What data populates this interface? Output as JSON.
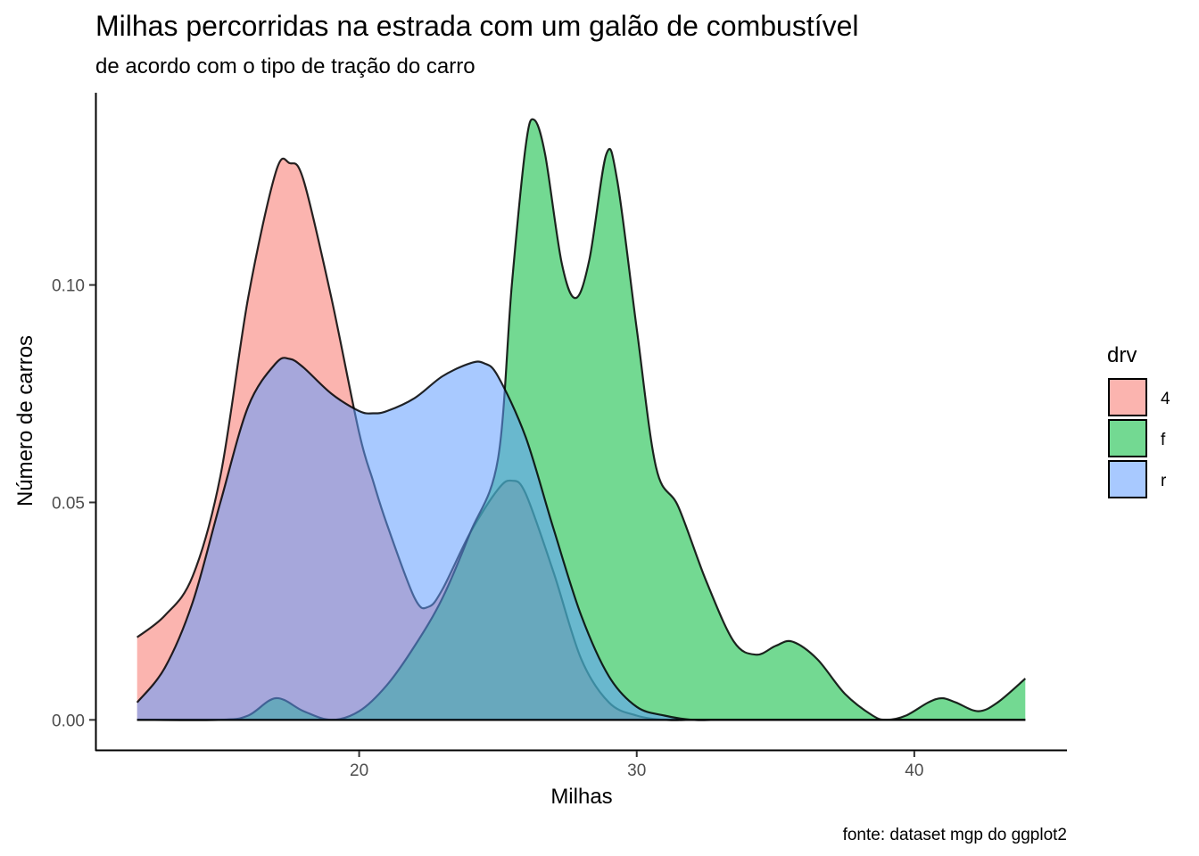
{
  "chart_data": {
    "type": "area",
    "title": "Milhas percorridas na estrada com um galão de combustível",
    "subtitle": "de acordo com o tipo de tração do carro",
    "xlabel": "Milhas",
    "ylabel": "Número de carros",
    "caption": "fonte: dataset mgp do ggplot2",
    "xlim": [
      10.5,
      45.5
    ],
    "ylim": [
      -0.0069,
      0.1442
    ],
    "x_ticks": [
      20,
      30,
      40
    ],
    "x_tick_labels": [
      "20",
      "30",
      "40"
    ],
    "y_ticks": [
      0,
      0.05,
      0.1
    ],
    "y_tick_labels": [
      "0.00",
      "0.05",
      "0.10"
    ],
    "grid": false,
    "legend": {
      "title": "drv",
      "position": "right"
    },
    "series": [
      {
        "name": "4",
        "color": "#F8766D",
        "points": [
          [
            12,
            0.019
          ],
          [
            13,
            0.024
          ],
          [
            14,
            0.033
          ],
          [
            15,
            0.056
          ],
          [
            16,
            0.097
          ],
          [
            17,
            0.126
          ],
          [
            17.5,
            0.128
          ],
          [
            18,
            0.124
          ],
          [
            19,
            0.097
          ],
          [
            20,
            0.066
          ],
          [
            20.5,
            0.055
          ],
          [
            21,
            0.045
          ],
          [
            22,
            0.028
          ],
          [
            22.5,
            0.026
          ],
          [
            23,
            0.03
          ],
          [
            24,
            0.043
          ],
          [
            25,
            0.053
          ],
          [
            25.5,
            0.055
          ],
          [
            26,
            0.052
          ],
          [
            27,
            0.034
          ],
          [
            28,
            0.014
          ],
          [
            29,
            0.004
          ],
          [
            30,
            0.001
          ],
          [
            31,
            0.0
          ],
          [
            32,
            0.0
          ],
          [
            33,
            0.0
          ],
          [
            34,
            0.0
          ],
          [
            35,
            0.0
          ],
          [
            36,
            0.0
          ],
          [
            38,
            0.0
          ],
          [
            40,
            0.0
          ],
          [
            42,
            0.0
          ],
          [
            44,
            0.0
          ]
        ]
      },
      {
        "name": "f",
        "color": "#00BA38",
        "points": [
          [
            12,
            0.0
          ],
          [
            15,
            0.0
          ],
          [
            16,
            0.001
          ],
          [
            17,
            0.005
          ],
          [
            18,
            0.002
          ],
          [
            19,
            0.0
          ],
          [
            20,
            0.002
          ],
          [
            21,
            0.008
          ],
          [
            22,
            0.017
          ],
          [
            23,
            0.028
          ],
          [
            24,
            0.043
          ],
          [
            25,
            0.06
          ],
          [
            25.5,
            0.1
          ],
          [
            26,
            0.132
          ],
          [
            26.3,
            0.138
          ],
          [
            26.7,
            0.13
          ],
          [
            27.3,
            0.105
          ],
          [
            27.8,
            0.097
          ],
          [
            28.3,
            0.106
          ],
          [
            28.9,
            0.13
          ],
          [
            29.3,
            0.124
          ],
          [
            30,
            0.09
          ],
          [
            30.7,
            0.058
          ],
          [
            31.5,
            0.049
          ],
          [
            32.5,
            0.032
          ],
          [
            33.5,
            0.018
          ],
          [
            34.3,
            0.015
          ],
          [
            35,
            0.017
          ],
          [
            35.6,
            0.018
          ],
          [
            36.5,
            0.014
          ],
          [
            37.5,
            0.006
          ],
          [
            38.5,
            0.001
          ],
          [
            39,
            0.0
          ],
          [
            39.7,
            0.001
          ],
          [
            40.5,
            0.004
          ],
          [
            41,
            0.005
          ],
          [
            41.5,
            0.004
          ],
          [
            42.3,
            0.002
          ],
          [
            43,
            0.004
          ],
          [
            44,
            0.0095
          ]
        ]
      },
      {
        "name": "r",
        "color": "#619CFF",
        "points": [
          [
            12,
            0.004
          ],
          [
            13,
            0.012
          ],
          [
            14,
            0.027
          ],
          [
            15,
            0.05
          ],
          [
            16,
            0.072
          ],
          [
            17,
            0.082
          ],
          [
            17.5,
            0.083
          ],
          [
            18,
            0.081
          ],
          [
            19,
            0.075
          ],
          [
            20,
            0.071
          ],
          [
            20.5,
            0.0705
          ],
          [
            21,
            0.071
          ],
          [
            22,
            0.074
          ],
          [
            23,
            0.079
          ],
          [
            24,
            0.082
          ],
          [
            24.5,
            0.082
          ],
          [
            25,
            0.079
          ],
          [
            26,
            0.065
          ],
          [
            27,
            0.044
          ],
          [
            28,
            0.024
          ],
          [
            29,
            0.01
          ],
          [
            30,
            0.003
          ],
          [
            31,
            0.001
          ],
          [
            32,
            0.0
          ],
          [
            33,
            0.0
          ],
          [
            35,
            0.0
          ],
          [
            38,
            0.0
          ],
          [
            40,
            0.0
          ],
          [
            42,
            0.0
          ],
          [
            44,
            0.0
          ]
        ]
      }
    ]
  }
}
